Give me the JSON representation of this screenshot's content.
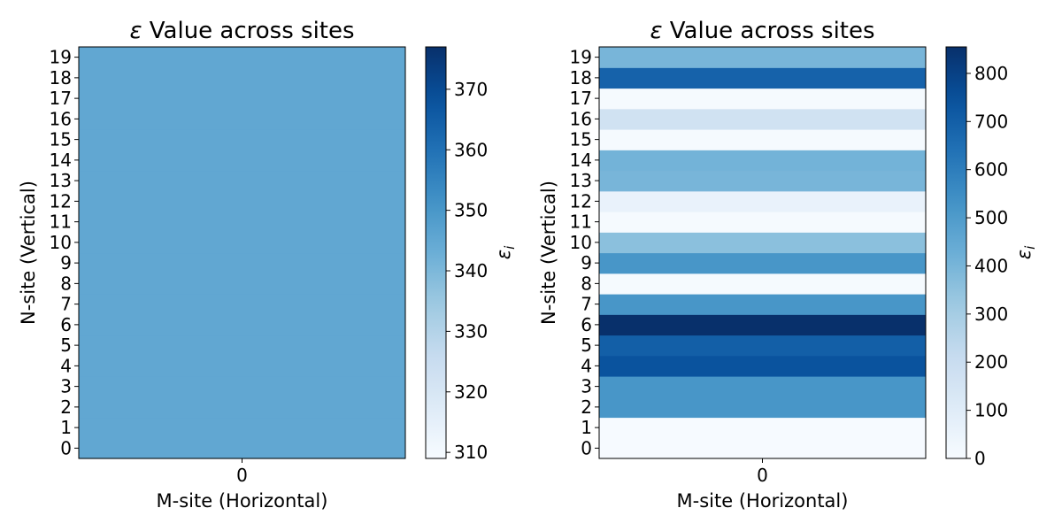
{
  "chart_data": [
    {
      "type": "heatmap",
      "title_symbol": "ε",
      "title_text": " Value across sites",
      "xlabel": "M-site (Horizontal)",
      "ylabel": "N-site (Vertical)",
      "x_categories": [
        "0"
      ],
      "y_categories": [
        "0",
        "1",
        "2",
        "3",
        "4",
        "5",
        "6",
        "7",
        "8",
        "9",
        "10",
        "11",
        "12",
        "13",
        "14",
        "15",
        "16",
        "17",
        "18",
        "19"
      ],
      "values": [
        345,
        345,
        345,
        345,
        345,
        345,
        345,
        345,
        345,
        345,
        345,
        345,
        345,
        345,
        345,
        345,
        345,
        345,
        345,
        345
      ],
      "colorbar": {
        "label_symbol": "ε",
        "label_subscript": "i",
        "vmin": 309,
        "vmax": 377,
        "ticks": [
          310,
          320,
          330,
          340,
          350,
          360,
          370
        ],
        "colormap": "Blues"
      }
    },
    {
      "type": "heatmap",
      "title_symbol": "ε",
      "title_text": " Value across sites",
      "xlabel": "M-site (Horizontal)",
      "ylabel": "N-site (Vertical)",
      "x_categories": [
        "0"
      ],
      "y_categories": [
        "0",
        "1",
        "2",
        "3",
        "4",
        "5",
        "6",
        "7",
        "8",
        "9",
        "10",
        "11",
        "12",
        "13",
        "14",
        "15",
        "16",
        "17",
        "18",
        "19"
      ],
      "values": [
        5,
        5,
        520,
        520,
        740,
        700,
        855,
        520,
        10,
        520,
        360,
        10,
        60,
        400,
        410,
        10,
        170,
        10,
        690,
        400
      ],
      "colorbar": {
        "label_symbol": "ε",
        "label_subscript": "i",
        "vmin": 0,
        "vmax": 855,
        "ticks": [
          0,
          100,
          200,
          300,
          400,
          500,
          600,
          700,
          800
        ],
        "colormap": "Blues"
      }
    }
  ]
}
